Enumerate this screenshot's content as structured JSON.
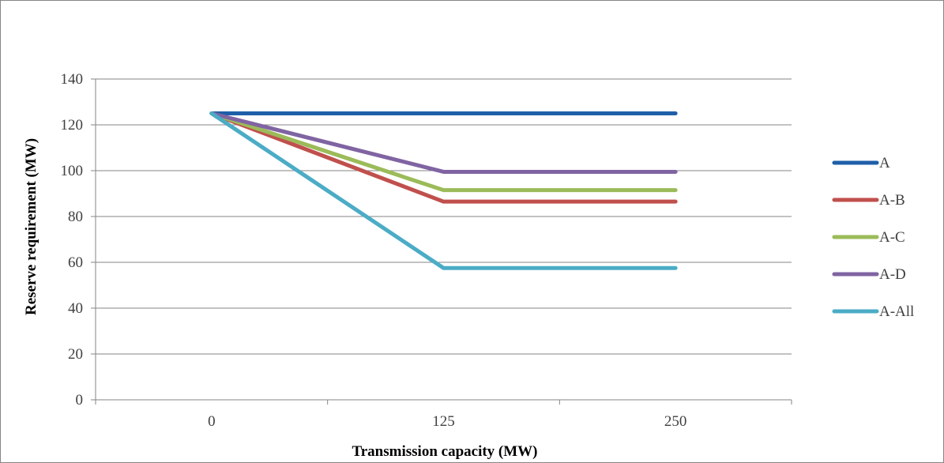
{
  "chart_data": {
    "type": "line",
    "title": "",
    "xlabel": "Transmission capacity (MW)",
    "ylabel": "Reserve requirement (MW)",
    "categories": [
      "0",
      "125",
      "250"
    ],
    "y_ticks": [
      "0",
      "20",
      "40",
      "60",
      "80",
      "100",
      "120",
      "140"
    ],
    "ylim": [
      0,
      140
    ],
    "grid": true,
    "legend_position": "right",
    "series": [
      {
        "name": "A",
        "values": [
          125,
          125,
          125
        ],
        "color": "#1f5fa8"
      },
      {
        "name": "A-B",
        "values": [
          125,
          86.5,
          86.5
        ],
        "color": "#c0504d"
      },
      {
        "name": "A-C",
        "values": [
          125,
          91.5,
          91.5
        ],
        "color": "#9bbb59"
      },
      {
        "name": "A-D",
        "values": [
          125,
          99.5,
          99.5
        ],
        "color": "#8064a2"
      },
      {
        "name": "A-All",
        "values": [
          125,
          57.5,
          57.5
        ],
        "color": "#4bacc6"
      }
    ]
  }
}
